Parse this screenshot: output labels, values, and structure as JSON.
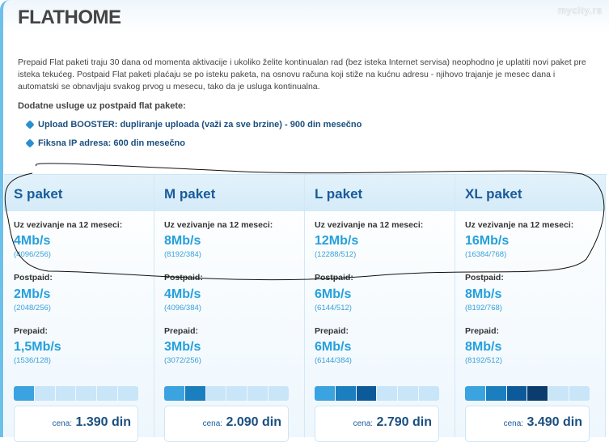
{
  "title": "FLATHOME",
  "intro": "Prepaid Flat paketi traju 30 dana od momenta aktivacije i ukoliko želite kontinualan rad (bez isteka Internet servisa) neophodno je uplatiti novi paket pre isteka tekućeg. Postpaid Flat paketi plaćaju se po isteku paketa, na osnovu računa koji stiže na kućnu adresu - njihovo trajanje je mesec dana i automatski se obnavljaju svakog prvog u mesecu, tako da je usluga kontinualna.",
  "extras": {
    "title": "Dodatne usluge uz postpaid flat pakete:",
    "items": [
      "Upload BOOSTER: dupliranje uploada (važi za sve brzine) - 900 din mesečno",
      "Fiksna IP adresa: 600 din mesečno"
    ]
  },
  "bar_colors": [
    "#3aa3e0",
    "#1a7ebf",
    "#0d5a9a",
    "#0a3d6e"
  ],
  "packages": [
    {
      "name": "S paket",
      "contract_label": "Uz vezivanje na 12 meseci:",
      "contract_speed": "4Mb/s",
      "contract_detail": "(4096/256)",
      "postpaid_label": "Postpaid:",
      "postpaid_speed": "2Mb/s",
      "postpaid_detail": "(2048/256)",
      "prepaid_label": "Prepaid:",
      "prepaid_speed": "1,5Mb/s",
      "prepaid_detail": "(1536/128)",
      "level": 1,
      "price_label": "cena:",
      "price": "1.390 din"
    },
    {
      "name": "M paket",
      "contract_label": "Uz vezivanje na 12 meseci:",
      "contract_speed": "8Mb/s",
      "contract_detail": "(8192/384)",
      "postpaid_label": "Postpaid:",
      "postpaid_speed": "4Mb/s",
      "postpaid_detail": "(4096/384)",
      "prepaid_label": "Prepaid:",
      "prepaid_speed": "3Mb/s",
      "prepaid_detail": "(3072/256)",
      "level": 2,
      "price_label": "cena:",
      "price": "2.090 din"
    },
    {
      "name": "L paket",
      "contract_label": "Uz vezivanje na 12 meseci:",
      "contract_speed": "12Mb/s",
      "contract_detail": "(12288/512)",
      "postpaid_label": "Postpaid:",
      "postpaid_speed": "6Mb/s",
      "postpaid_detail": "(6144/512)",
      "prepaid_label": "Prepaid:",
      "prepaid_speed": "6Mb/s",
      "prepaid_detail": "(6144/384)",
      "level": 3,
      "price_label": "cena:",
      "price": "2.790 din"
    },
    {
      "name": "XL paket",
      "contract_label": "Uz vezivanje na 12 meseci:",
      "contract_speed": "16Mb/s",
      "contract_detail": "(16384/768)",
      "postpaid_label": "Postpaid:",
      "postpaid_speed": "8Mb/s",
      "postpaid_detail": "(8192/768)",
      "prepaid_label": "Prepaid:",
      "prepaid_speed": "8Mb/s",
      "prepaid_detail": "(8192/512)",
      "level": 4,
      "price_label": "cena:",
      "price": "3.490 din"
    }
  ],
  "watermark": "mycity.rs"
}
